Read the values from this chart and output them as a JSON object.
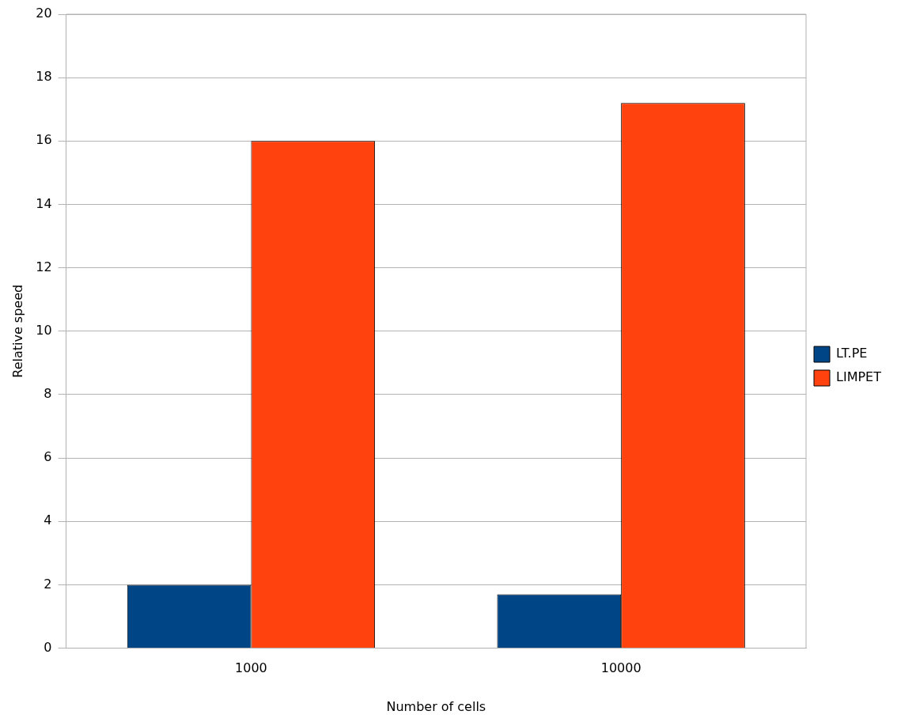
{
  "chart_data": {
    "type": "bar",
    "xlabel": "Number of cells",
    "ylabel": "Relative speed",
    "categories": [
      "1000",
      "10000"
    ],
    "series": [
      {
        "name": "LT.PE",
        "color": "#004586",
        "values": [
          2,
          1.7
        ]
      },
      {
        "name": "LIMPET",
        "color": "#ff420e",
        "values": [
          16,
          17.2
        ]
      }
    ],
    "ylim": [
      0,
      20
    ],
    "yticks": [
      0,
      2,
      4,
      6,
      8,
      10,
      12,
      14,
      16,
      18,
      20
    ],
    "grid": "y",
    "legend": "right"
  }
}
